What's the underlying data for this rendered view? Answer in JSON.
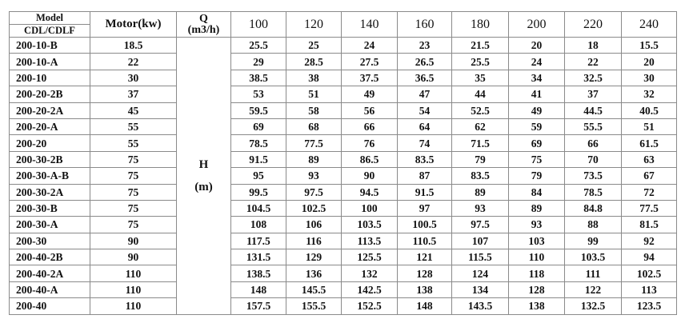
{
  "header": {
    "model_top": "Model",
    "model_bottom": "CDL/CDLF",
    "motor": "Motor(kw)",
    "q_label": "Q",
    "q_unit": "(m3/h)",
    "flows": [
      "100",
      "120",
      "140",
      "160",
      "180",
      "200",
      "220",
      "240"
    ]
  },
  "head_label": "H",
  "head_unit": "(m)",
  "rows": [
    {
      "model": "200-10-B",
      "motor": "18.5",
      "values": [
        "25.5",
        "25",
        "24",
        "23",
        "21.5",
        "20",
        "18",
        "15.5"
      ]
    },
    {
      "model": "200-10-A",
      "motor": "22",
      "values": [
        "29",
        "28.5",
        "27.5",
        "26.5",
        "25.5",
        "24",
        "22",
        "20"
      ]
    },
    {
      "model": "200-10",
      "motor": "30",
      "values": [
        "38.5",
        "38",
        "37.5",
        "36.5",
        "35",
        "34",
        "32.5",
        "30"
      ]
    },
    {
      "model": "200-20-2B",
      "motor": "37",
      "values": [
        "53",
        "51",
        "49",
        "47",
        "44",
        "41",
        "37",
        "32"
      ]
    },
    {
      "model": "200-20-2A",
      "motor": "45",
      "values": [
        "59.5",
        "58",
        "56",
        "54",
        "52.5",
        "49",
        "44.5",
        "40.5"
      ]
    },
    {
      "model": "200-20-A",
      "motor": "55",
      "values": [
        "69",
        "68",
        "66",
        "64",
        "62",
        "59",
        "55.5",
        "51"
      ]
    },
    {
      "model": "200-20",
      "motor": "55",
      "values": [
        "78.5",
        "77.5",
        "76",
        "74",
        "71.5",
        "69",
        "66",
        "61.5"
      ]
    },
    {
      "model": "200-30-2B",
      "motor": "75",
      "values": [
        "91.5",
        "89",
        "86.5",
        "83.5",
        "79",
        "75",
        "70",
        "63"
      ]
    },
    {
      "model": "200-30-A-B",
      "motor": "75",
      "values": [
        "95",
        "93",
        "90",
        "87",
        "83.5",
        "79",
        "73.5",
        "67"
      ]
    },
    {
      "model": "200-30-2A",
      "motor": "75",
      "values": [
        "99.5",
        "97.5",
        "94.5",
        "91.5",
        "89",
        "84",
        "78.5",
        "72"
      ]
    },
    {
      "model": "200-30-B",
      "motor": "75",
      "values": [
        "104.5",
        "102.5",
        "100",
        "97",
        "93",
        "89",
        "84.8",
        "77.5"
      ]
    },
    {
      "model": "200-30-A",
      "motor": "75",
      "values": [
        "108",
        "106",
        "103.5",
        "100.5",
        "97.5",
        "93",
        "88",
        "81.5"
      ]
    },
    {
      "model": "200-30",
      "motor": "90",
      "values": [
        "117.5",
        "116",
        "113.5",
        "110.5",
        "107",
        "103",
        "99",
        "92"
      ]
    },
    {
      "model": "200-40-2B",
      "motor": "90",
      "values": [
        "131.5",
        "129",
        "125.5",
        "121",
        "115.5",
        "110",
        "103.5",
        "94"
      ]
    },
    {
      "model": "200-40-2A",
      "motor": "110",
      "values": [
        "138.5",
        "136",
        "132",
        "128",
        "124",
        "118",
        "111",
        "102.5"
      ]
    },
    {
      "model": "200-40-A",
      "motor": "110",
      "values": [
        "148",
        "145.5",
        "142.5",
        "138",
        "134",
        "128",
        "122",
        "113"
      ]
    },
    {
      "model": "200-40",
      "motor": "110",
      "values": [
        "157.5",
        "155.5",
        "152.5",
        "148",
        "143.5",
        "138",
        "132.5",
        "123.5"
      ]
    }
  ]
}
